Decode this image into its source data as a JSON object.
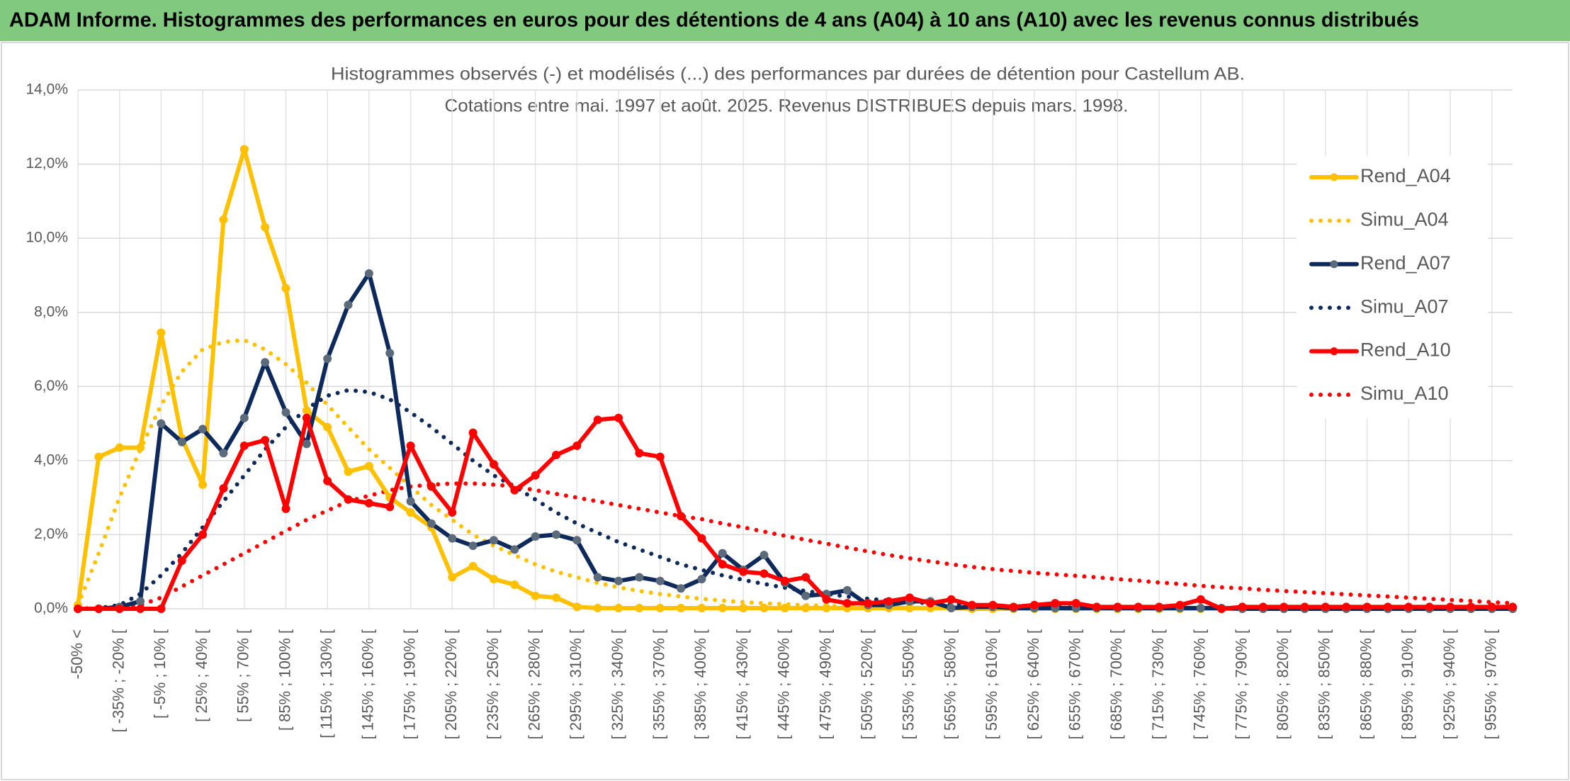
{
  "chart_data": {
    "type": "line",
    "title": "ADAM Informe. Histogrammes des performances en euros pour des détentions de 4 ans (A04) à 10 ans (A10) avec les revenus connus distribués",
    "subtitle": [
      "Histogrammes observés (-) et modélisés (...) des performances par durées de détention pour Castellum AB.",
      "Cotations entre mai. 1997 et août. 2025. Revenus DISTRIBUES depuis mars. 1998."
    ],
    "categories": [
      "-50% <",
      null,
      "[ -35% ; -20% [",
      null,
      "[ -5% ; 10% [",
      null,
      "[ 25% ; 40% [",
      null,
      "[ 55% ; 70% [",
      null,
      "[ 85% ; 100% [",
      null,
      "[ 115% ; 130% [",
      null,
      "[ 145% ; 160% [",
      null,
      "[ 175% ; 190% [",
      null,
      "[ 205% ; 220% [",
      null,
      "[ 235% ; 250% [",
      null,
      "[ 265% ; 280% [",
      null,
      "[ 295% ; 310% [",
      null,
      "[ 325% ; 340% [",
      null,
      "[ 355% ; 370% [",
      null,
      "[ 385% ; 400% [",
      null,
      "[ 415% ; 430% [",
      null,
      "[ 445% ; 460% [",
      null,
      "[ 475% ; 490% [",
      null,
      "[ 505% ; 520% [",
      null,
      "[ 535% ; 550% [",
      null,
      "[ 565% ; 580% [",
      null,
      "[ 595% ; 610% [",
      null,
      "[ 625% ; 640% [",
      null,
      "[ 655% ; 670% [",
      null,
      "[ 685% ; 700% [",
      null,
      "[ 715% ; 730% [",
      null,
      "[ 745% ; 760% [",
      null,
      "[ 775% ; 790% [",
      null,
      "[ 805% ; 820% [",
      null,
      "[ 835% ; 850% [",
      null,
      "[ 865% ; 880% [",
      null,
      "[ 895% ; 910% [",
      null,
      "[ 925% ; 940% [",
      null,
      "[ 955% ; 970% [",
      null
    ],
    "series": [
      {
        "name": "Rend_A04",
        "color": "#ffc000",
        "dash": "solid",
        "markers": true,
        "marker_color": "#ffc000",
        "values": [
          0.1,
          4.1,
          4.35,
          4.35,
          7.45,
          4.6,
          3.35,
          10.5,
          12.4,
          10.3,
          8.65,
          5.35,
          4.9,
          3.7,
          3.85,
          3.0,
          2.6,
          2.2,
          0.85,
          1.15,
          0.8,
          0.65,
          0.35,
          0.3,
          0.05,
          0.02,
          0.02,
          0.02,
          0.02,
          0.02,
          0.02,
          0.02,
          0.02,
          0.02,
          0.02,
          0.02,
          0.02,
          0.02,
          0.02,
          0.02,
          0.02,
          0.02,
          0.02,
          0,
          0,
          0,
          0,
          0,
          0,
          0,
          0,
          0,
          0,
          0,
          0,
          0,
          0,
          0,
          0,
          0,
          0,
          0,
          0,
          0,
          0,
          0,
          0,
          0,
          0,
          0
        ]
      },
      {
        "name": "Simu_A04",
        "color": "#ffc000",
        "dash": "dot",
        "markers": false,
        "values": [
          0.1,
          1.5,
          3.0,
          4.3,
          5.5,
          6.4,
          7.0,
          7.2,
          7.25,
          7.0,
          6.6,
          6.1,
          5.5,
          4.9,
          4.3,
          3.8,
          3.3,
          2.8,
          2.4,
          2.0,
          1.7,
          1.45,
          1.2,
          1.0,
          0.85,
          0.7,
          0.58,
          0.48,
          0.4,
          0.33,
          0.27,
          0.22,
          0.18,
          0.15,
          0.12,
          0.1,
          0.08,
          0.06,
          0.05,
          0.04,
          0.03,
          0.02,
          0.02,
          0.01,
          0.01,
          null,
          null,
          null,
          null,
          null,
          null,
          null,
          null,
          null,
          null,
          null,
          null,
          null,
          null,
          null,
          null,
          null,
          null,
          null,
          null,
          null,
          null,
          null,
          null,
          null
        ]
      },
      {
        "name": "Rend_A07",
        "color": "#0e2a5c",
        "dash": "solid",
        "markers": true,
        "marker_color": "#5b6b7b",
        "values": [
          0,
          0,
          0.05,
          0.2,
          5.0,
          4.5,
          4.85,
          4.2,
          5.15,
          6.65,
          5.3,
          4.45,
          6.75,
          8.2,
          9.05,
          6.9,
          2.9,
          2.3,
          1.9,
          1.7,
          1.85,
          1.6,
          1.95,
          2.0,
          1.85,
          0.85,
          0.75,
          0.85,
          0.75,
          0.55,
          0.8,
          1.5,
          1.05,
          1.45,
          0.7,
          0.35,
          0.4,
          0.5,
          0.1,
          0.1,
          0.2,
          0.2,
          0.02,
          0.05,
          0.05,
          0.02,
          0.02,
          0.02,
          0.02,
          0.02,
          0.02,
          0.02,
          0.02,
          0.02,
          0.02,
          0.02,
          0,
          0,
          0,
          0,
          0,
          0,
          0,
          0,
          0,
          0,
          0,
          0,
          0,
          0
        ]
      },
      {
        "name": "Simu_A07",
        "color": "#0e2a5c",
        "dash": "dot",
        "markers": false,
        "values": [
          0,
          0.02,
          0.1,
          0.4,
          0.9,
          1.5,
          2.2,
          2.9,
          3.6,
          4.3,
          4.9,
          5.4,
          5.75,
          5.9,
          5.85,
          5.65,
          5.3,
          4.9,
          4.45,
          4.0,
          3.6,
          3.3,
          2.95,
          2.6,
          2.3,
          2.05,
          1.8,
          1.6,
          1.4,
          1.2,
          1.05,
          0.9,
          0.78,
          0.67,
          0.57,
          0.48,
          0.4,
          0.33,
          0.27,
          0.22,
          0.18,
          0.15,
          0.12,
          0.1,
          0.08,
          0.06,
          0.05,
          0.04,
          0.03,
          0.02,
          0.02,
          0.02,
          0.02,
          0.01,
          0.01,
          0.01,
          0.01,
          0.01,
          0.01,
          0.01,
          0.01,
          0.01,
          0.01,
          0.01,
          0.01,
          0.01,
          0.01,
          0.01,
          0.01,
          0.01
        ]
      },
      {
        "name": "Rend_A10",
        "color": "#ff0000",
        "dash": "solid",
        "markers": true,
        "marker_color": "#ff0000",
        "values": [
          0,
          0,
          0,
          0,
          0,
          1.3,
          2.0,
          3.25,
          4.4,
          4.55,
          2.7,
          5.15,
          3.45,
          2.95,
          2.85,
          2.75,
          4.4,
          3.3,
          2.6,
          4.75,
          3.9,
          3.2,
          3.6,
          4.15,
          4.4,
          5.1,
          5.15,
          4.2,
          4.1,
          2.5,
          1.9,
          1.2,
          1.0,
          0.95,
          0.75,
          0.85,
          0.25,
          0.15,
          0.15,
          0.2,
          0.3,
          0.15,
          0.25,
          0.1,
          0.1,
          0.05,
          0.1,
          0.15,
          0.15,
          0.05,
          0.05,
          0.05,
          0.05,
          0.1,
          0.25,
          0,
          0.05,
          0.05,
          0.05,
          0.05,
          0.05,
          0.05,
          0.05,
          0.05,
          0.05,
          0.05,
          0.05,
          0.05,
          0.05,
          0.05
        ]
      },
      {
        "name": "Simu_A10",
        "color": "#ff0000",
        "dash": "dot",
        "markers": false,
        "values": [
          0,
          0,
          0.05,
          0.1,
          0.3,
          0.6,
          0.9,
          1.2,
          1.5,
          1.8,
          2.1,
          2.4,
          2.65,
          2.9,
          3.05,
          3.2,
          3.3,
          3.35,
          3.38,
          3.38,
          3.35,
          3.3,
          3.2,
          3.1,
          3.0,
          2.9,
          2.8,
          2.7,
          2.6,
          2.5,
          2.42,
          2.3,
          2.2,
          2.08,
          1.97,
          1.86,
          1.76,
          1.65,
          1.55,
          1.45,
          1.36,
          1.28,
          1.2,
          1.13,
          1.07,
          1.02,
          0.97,
          0.93,
          0.89,
          0.85,
          0.8,
          0.76,
          0.71,
          0.67,
          0.62,
          0.58,
          0.55,
          0.51,
          0.48,
          0.45,
          0.42,
          0.39,
          0.36,
          0.33,
          0.3,
          0.27,
          0.24,
          0.21,
          0.18,
          0.15
        ]
      }
    ],
    "ylim": [
      0,
      14
    ],
    "yticks": [
      {
        "value": 0,
        "label": "0,0%"
      },
      {
        "value": 2,
        "label": "2,0%"
      },
      {
        "value": 4,
        "label": "4,0%"
      },
      {
        "value": 6,
        "label": "6,0%"
      },
      {
        "value": 8,
        "label": "8,0%"
      },
      {
        "value": 10,
        "label": "10,0%"
      },
      {
        "value": 12,
        "label": "12,0%"
      },
      {
        "value": 14,
        "label": "14,0%"
      }
    ],
    "grid": true,
    "legend": "right"
  }
}
